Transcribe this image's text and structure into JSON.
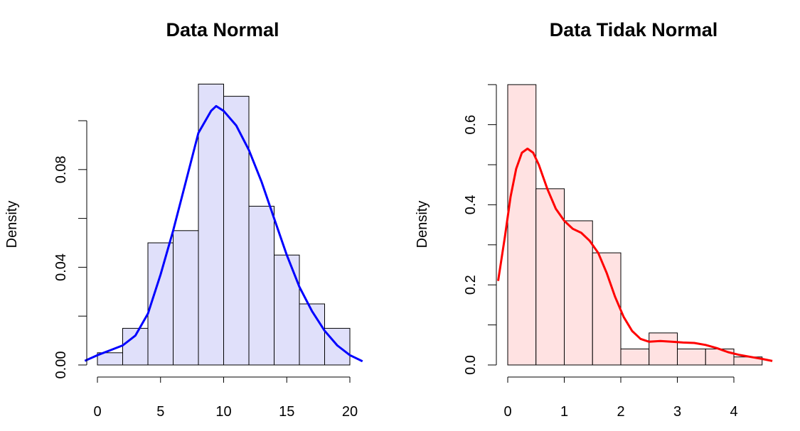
{
  "chart_data": [
    {
      "type": "bar",
      "title": "Data Normal",
      "xlabel": "",
      "ylabel": "Density",
      "bin_edges": [
        0,
        2,
        4,
        6,
        8,
        10,
        12,
        14,
        16,
        18,
        20
      ],
      "values": [
        0.005,
        0.015,
        0.05,
        0.055,
        0.115,
        0.11,
        0.065,
        0.045,
        0.025,
        0.015
      ],
      "x_ticks": [
        0,
        5,
        10,
        15,
        20
      ],
      "y_ticks": [
        0,
        0.02,
        0.04,
        0.06,
        0.08,
        0.1
      ],
      "y_tick_labels": [
        "0.00",
        "0.04",
        "0.08"
      ],
      "y_tick_labeled_values": [
        0,
        0.04,
        0.08
      ],
      "bar_color": "#e0e0fa",
      "density_curve": {
        "color": "#0000ff",
        "x": [
          -1,
          0,
          1,
          2,
          3,
          4,
          5,
          6,
          7,
          8,
          9,
          9.4,
          10,
          11,
          12,
          13,
          14,
          15,
          16,
          17,
          18,
          19,
          20,
          21
        ],
        "y": [
          0.0017,
          0.004,
          0.006,
          0.008,
          0.012,
          0.021,
          0.037,
          0.055,
          0.075,
          0.095,
          0.104,
          0.106,
          0.104,
          0.098,
          0.088,
          0.075,
          0.06,
          0.045,
          0.032,
          0.022,
          0.014,
          0.008,
          0.004,
          0.0015
        ]
      }
    },
    {
      "type": "bar",
      "title": "Data Tidak Normal",
      "xlabel": "",
      "ylabel": "Density",
      "bin_edges": [
        0,
        0.5,
        1,
        1.5,
        2,
        2.5,
        3,
        3.5,
        4,
        4.5
      ],
      "values": [
        0.7,
        0.44,
        0.36,
        0.28,
        0.04,
        0.08,
        0.04,
        0.04,
        0.02
      ],
      "x_ticks": [
        0,
        1,
        2,
        3,
        4
      ],
      "y_ticks": [
        0,
        0.1,
        0.2,
        0.3,
        0.4,
        0.5,
        0.6,
        0.7
      ],
      "y_tick_labels": [
        "0.0",
        "0.2",
        "0.4",
        "0.6"
      ],
      "y_tick_labeled_values": [
        0,
        0.2,
        0.4,
        0.6
      ],
      "bar_color": "#ffe2e2",
      "density_curve": {
        "color": "#ff0000",
        "x": [
          -0.17,
          -0.05,
          0.05,
          0.15,
          0.25,
          0.35,
          0.45,
          0.55,
          0.7,
          0.85,
          1.0,
          1.15,
          1.3,
          1.45,
          1.6,
          1.75,
          1.9,
          2.05,
          2.2,
          2.35,
          2.5,
          2.7,
          2.9,
          3.1,
          3.3,
          3.5,
          3.7,
          3.9,
          4.1,
          4.3,
          4.5,
          4.68
        ],
        "y": [
          0.21,
          0.32,
          0.42,
          0.49,
          0.53,
          0.54,
          0.53,
          0.5,
          0.44,
          0.39,
          0.36,
          0.34,
          0.33,
          0.31,
          0.28,
          0.23,
          0.17,
          0.12,
          0.085,
          0.065,
          0.058,
          0.06,
          0.058,
          0.056,
          0.055,
          0.05,
          0.042,
          0.032,
          0.025,
          0.02,
          0.015,
          0.01
        ]
      }
    }
  ]
}
